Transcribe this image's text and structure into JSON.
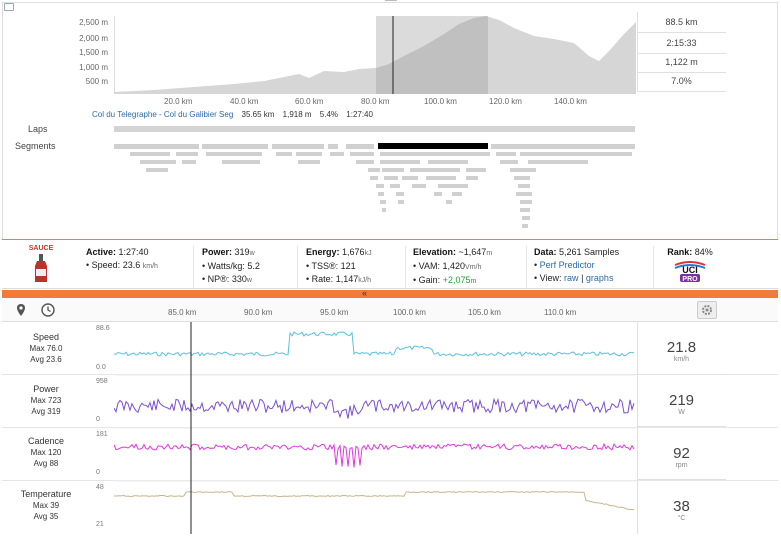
{
  "overview": {
    "y_ticks": [
      "2,500 m",
      "2,000 m",
      "1,500 m",
      "1,000 m",
      "500 m"
    ],
    "x_ticks": [
      "20.0 km",
      "40.0 km",
      "60.0 km",
      "80.0 km",
      "100.0 km",
      "120.0 km",
      "140.0 km"
    ],
    "selection_label": "Col du Telegraphe - Col du Galibier Seg",
    "selection_distance": "35.65 km",
    "selection_elev": "1,918 m",
    "selection_grade": "5.4%",
    "selection_time": "1:27:40",
    "stats": [
      "88.5 km",
      "2:15:33",
      "1,122 m",
      "7.0%"
    ],
    "laps_label": "Laps",
    "segments_label": "Segments"
  },
  "info": {
    "sauce_label": "SAUCE",
    "active_label": "Active:",
    "active_value": "1:27:40",
    "speed_label": "Speed:",
    "speed_value": "23.6",
    "speed_unit": "km/h",
    "power_label": "Power:",
    "power_value": "319",
    "power_unit": "w",
    "wkg_label": "Watts/kg:",
    "wkg_value": "5.2",
    "np_label": "NP®:",
    "np_value": "330",
    "np_unit": "w",
    "energy_label": "Energy:",
    "energy_value": "1,676",
    "energy_unit": "kJ",
    "tss_label": "TSS®:",
    "tss_value": "121",
    "rate_label": "Rate:",
    "rate_value": "1,147",
    "rate_unit": "kJ/h",
    "elev_label": "Elevation:",
    "elev_value": "~1,647",
    "elev_unit": "m",
    "vam_label": "VAM:",
    "vam_value": "1,420",
    "vam_unit": "Vm/h",
    "gain_label": "Gain:",
    "gain_value": "+2,075",
    "gain_unit": "m",
    "data_label": "Data:",
    "data_value": "5,261 Samples",
    "perf_link": "Perf Predictor",
    "view_label": "View:",
    "view_raw": "raw",
    "view_sep": "|",
    "view_graphs": "graphs",
    "rank_label": "Rank:",
    "rank_value": "84%",
    "rank_badge": "UCI PRO"
  },
  "collapse_glyph": "«",
  "stream_x_ticks": [
    "85.0 km",
    "90.0 km",
    "95.0 km",
    "100.0 km",
    "105.0 km",
    "110.0 km"
  ],
  "streams": [
    {
      "name": "Speed",
      "max": "Max 76.0",
      "avg": "Avg 23.6",
      "top": "88.6",
      "bottom": "0.0",
      "value": "21.8",
      "unit": "km/h",
      "color": "#5bc0de"
    },
    {
      "name": "Power",
      "max": "Max 723",
      "avg": "Avg 319",
      "top": "958",
      "bottom": "0",
      "value": "219",
      "unit": "W",
      "color": "#7a4fd1"
    },
    {
      "name": "Cadence",
      "max": "Max 120",
      "avg": "Avg 88",
      "top": "181",
      "bottom": "0",
      "value": "92",
      "unit": "rpm",
      "color": "#e038e0"
    },
    {
      "name": "Temperature",
      "max": "Max 39",
      "avg": "Avg 35",
      "top": "48",
      "bottom": "21",
      "value": "38",
      "unit": "°C",
      "color": "#c8b48a"
    }
  ],
  "colors": {
    "accent": "#f07b3a",
    "selection": "#000000",
    "elevation_fill": "#d6d6d6"
  }
}
